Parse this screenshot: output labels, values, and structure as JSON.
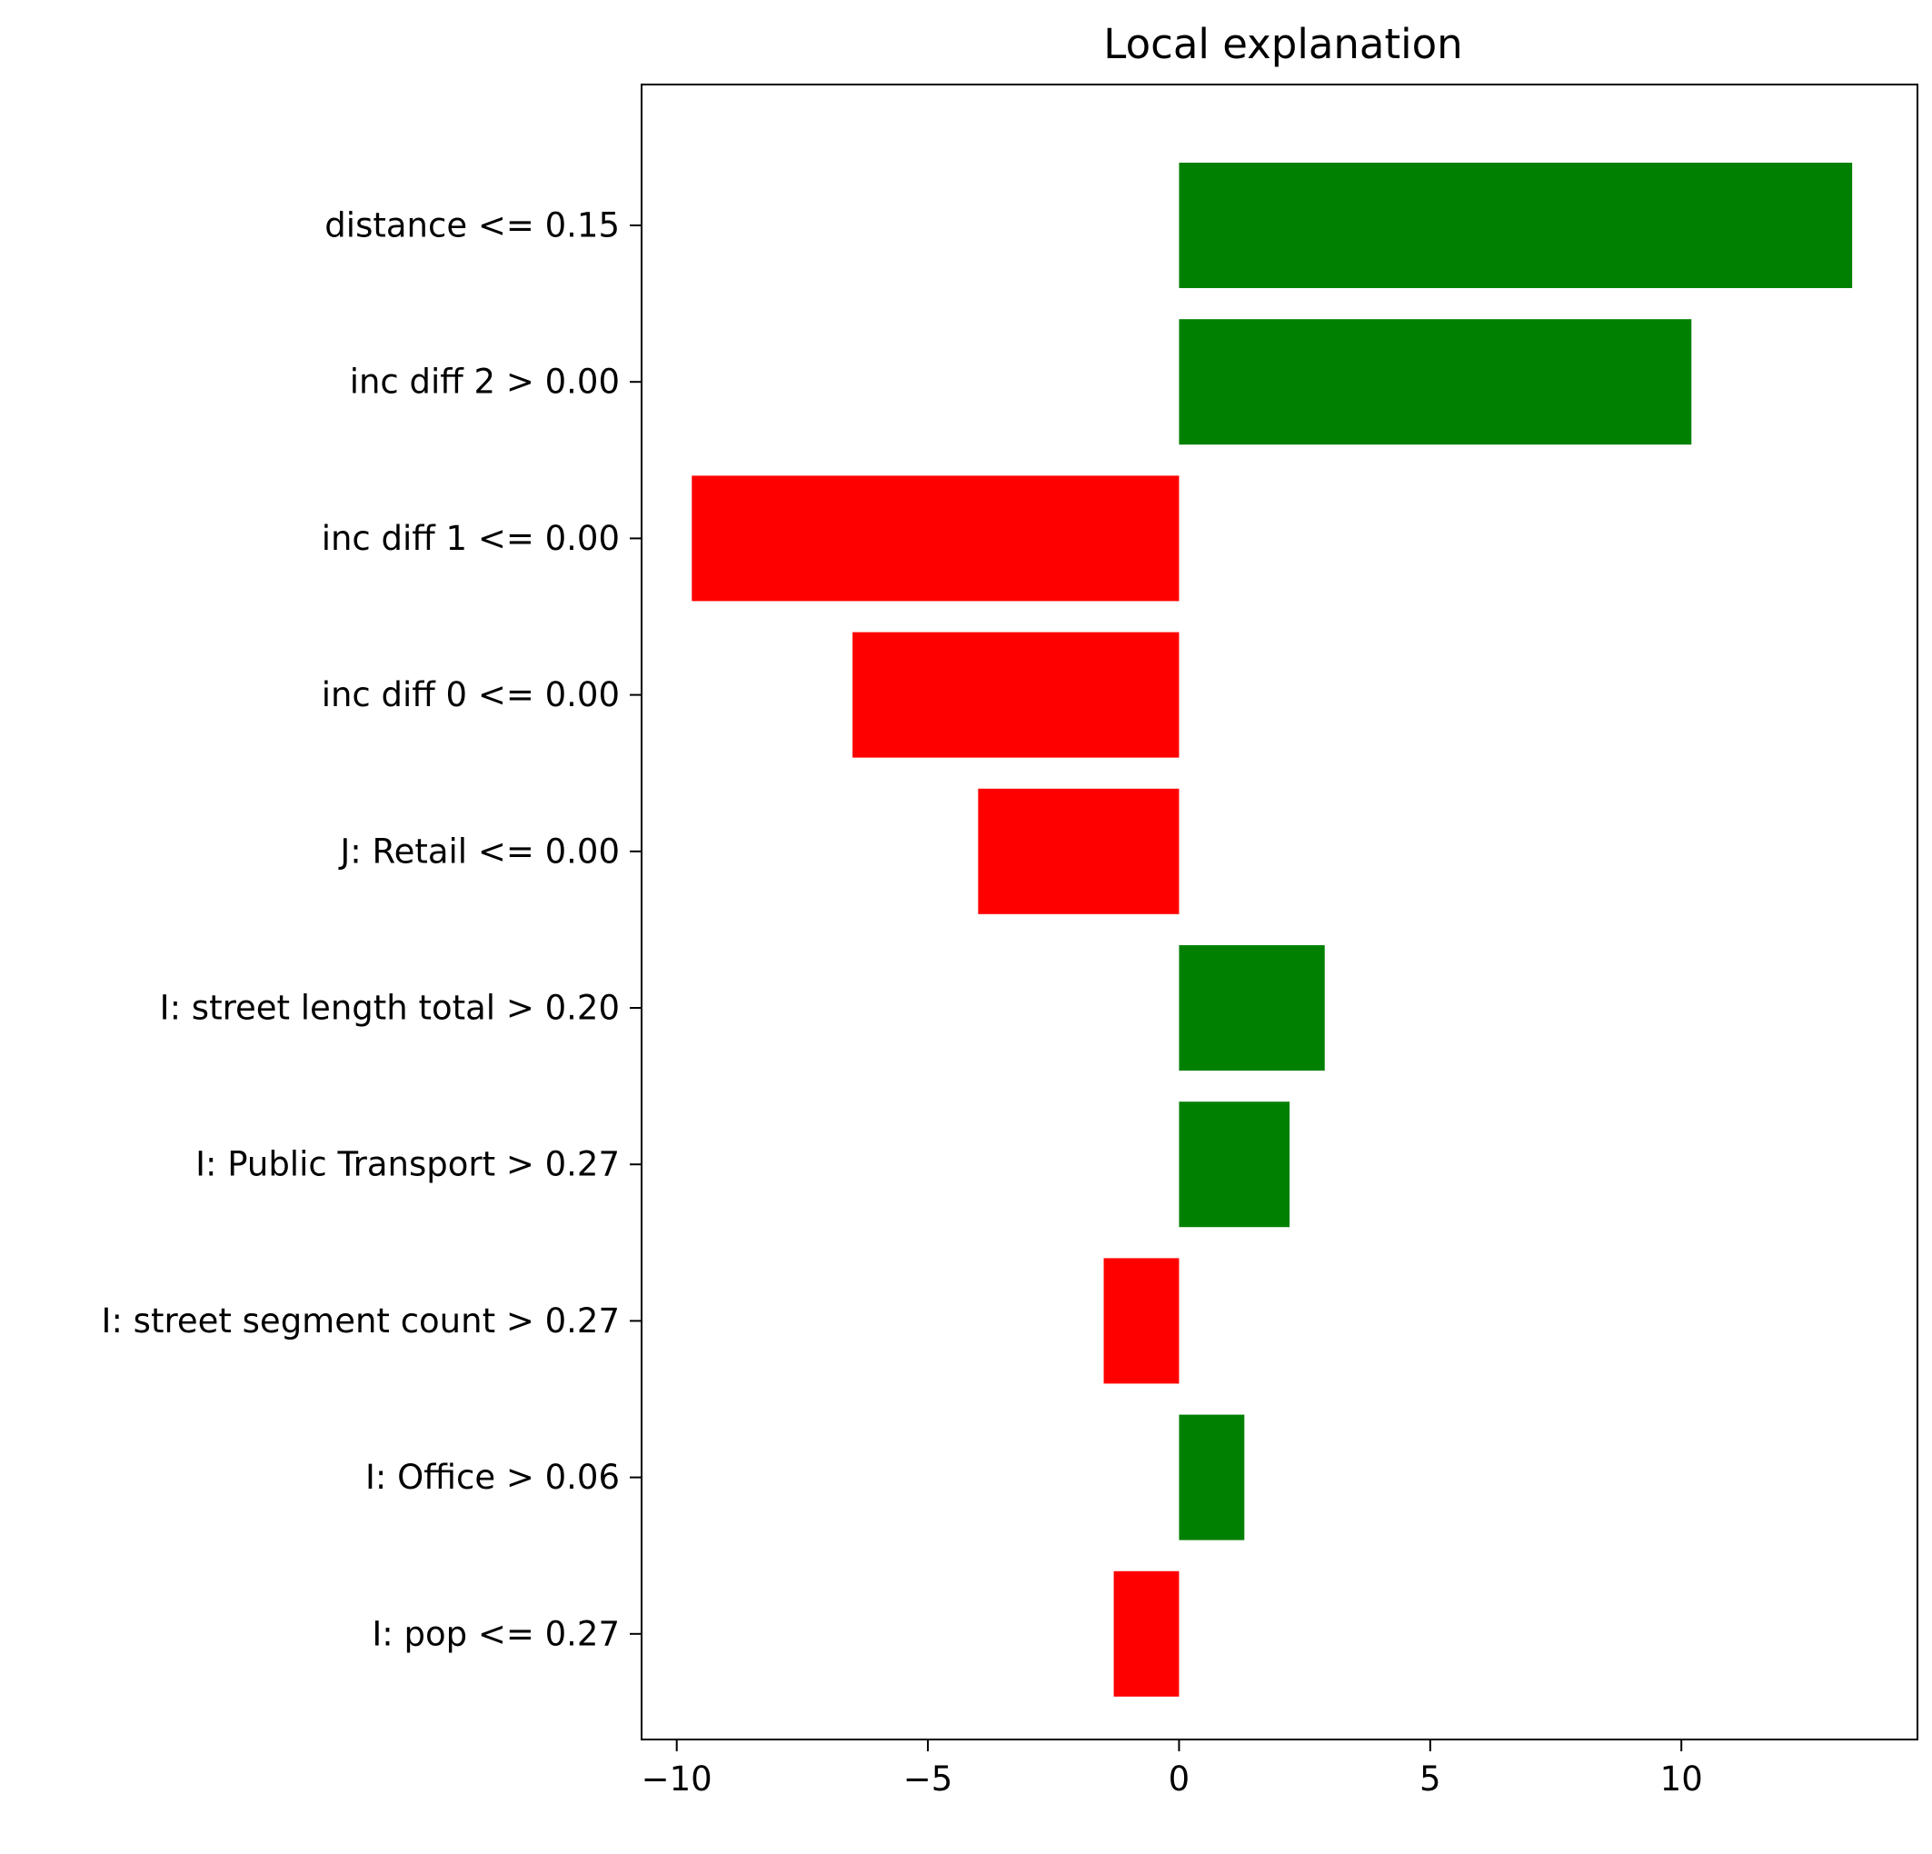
{
  "chart_data": {
    "type": "bar",
    "orientation": "horizontal",
    "title": "Local explanation",
    "xlabel": "",
    "ylabel": "",
    "xlim": [
      -10.7,
      14.7
    ],
    "xticks": [
      -10,
      -5,
      0,
      5,
      10
    ],
    "xtick_labels": [
      "−10",
      "−5",
      "0",
      "5",
      "10"
    ],
    "grid": false,
    "colors": {
      "positive": "#008000",
      "negative": "#ff0000"
    },
    "categories": [
      "distance <= 0.15",
      "inc diff 2 > 0.00",
      "inc diff 1 <= 0.00",
      "inc diff 0 <= 0.00",
      "J: Retail <= 0.00",
      "I: street length total > 0.20",
      "I: Public Transport > 0.27",
      "I: street segment count > 0.27",
      "I: Office > 0.06",
      "I: pop <= 0.27"
    ],
    "values": [
      13.4,
      10.2,
      -9.7,
      -6.5,
      -4.0,
      2.9,
      2.2,
      -1.5,
      1.3,
      -1.3
    ]
  }
}
